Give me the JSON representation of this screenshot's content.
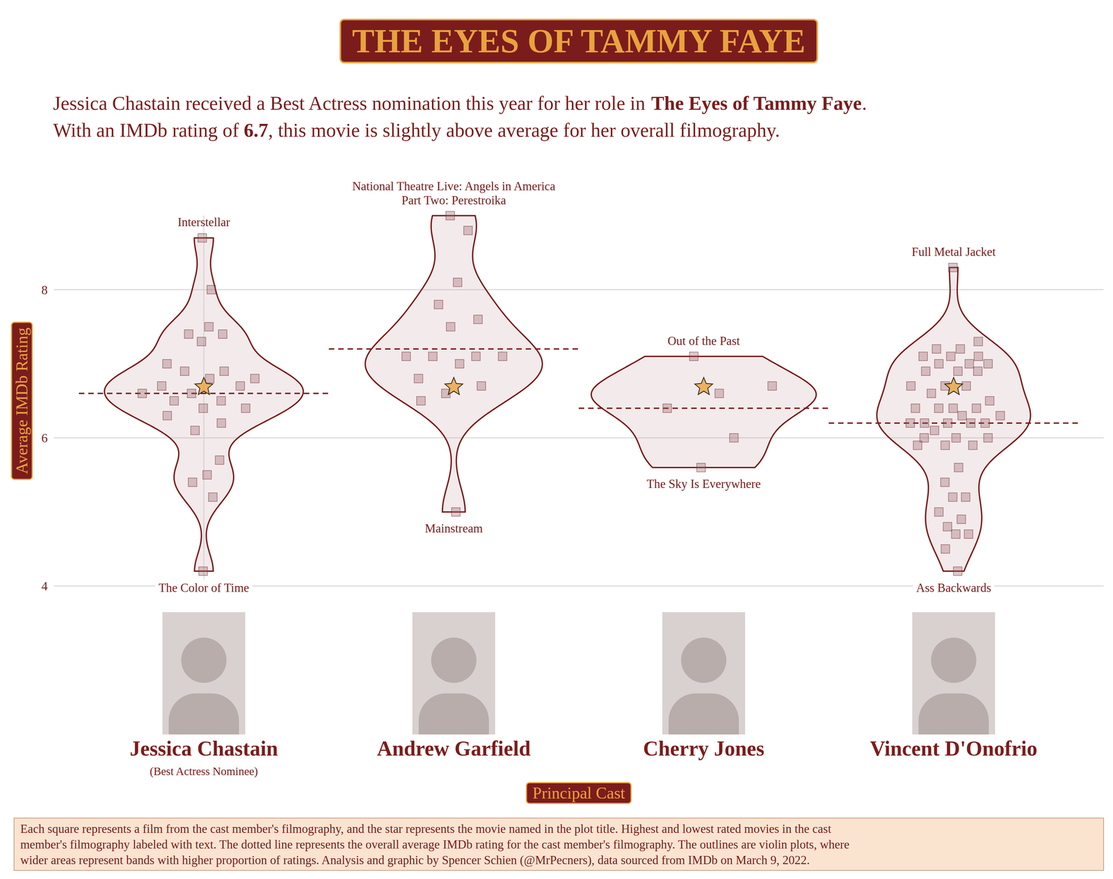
{
  "title": "THE EYES OF TAMMY FAYE",
  "subtitle": [
    [
      {
        "text": "Jessica Chastain received a Best Actress nomination this year for her role in ",
        "bold": false
      },
      {
        "text": "The Eyes of Tammy Faye",
        "bold": true
      },
      {
        "text": ".",
        "bold": false
      }
    ],
    [
      {
        "text": "With an IMDb rating of ",
        "bold": false
      },
      {
        "text": "6.7",
        "bold": true
      },
      {
        "text": ", this movie is slightly above average for her overall filmography.",
        "bold": false
      }
    ]
  ],
  "chart_data": {
    "type": "violin",
    "y_label": "Average IMDb Rating",
    "x_label": "Principal Cast",
    "ylim": [
      4,
      9
    ],
    "yticks": [
      4,
      6,
      8
    ],
    "grid": true,
    "series": [
      {
        "name": "Jessica Chastain",
        "note": "(Best Actress Nominee)",
        "values": [
          8.7,
          8.0,
          7.5,
          7.4,
          7.4,
          7.3,
          7.0,
          6.9,
          6.9,
          6.8,
          6.8,
          6.7,
          6.7,
          6.6,
          6.6,
          6.5,
          6.5,
          6.4,
          6.4,
          6.3,
          6.2,
          6.1,
          5.7,
          5.5,
          5.4,
          5.2,
          4.2
        ],
        "featured": 6.7,
        "average": 6.6,
        "top_label": [
          "Interstellar"
        ],
        "bottom_label": [
          "The Color of Time"
        ]
      },
      {
        "name": "Andrew Garfield",
        "values": [
          9.0,
          8.8,
          8.1,
          7.8,
          7.6,
          7.5,
          7.1,
          7.1,
          7.1,
          7.1,
          7.0,
          6.8,
          6.7,
          6.6,
          6.5,
          5.0
        ],
        "featured": 6.7,
        "average": 7.2,
        "top_label": [
          "National Theatre Live: Angels in America",
          "Part Two: Perestroika"
        ],
        "bottom_label": [
          "Mainstream"
        ]
      },
      {
        "name": "Cherry Jones",
        "values": [
          7.1,
          6.7,
          6.6,
          6.4,
          6.0,
          5.6
        ],
        "featured": 6.7,
        "average": 6.4,
        "top_label": [
          "Out of the Past"
        ],
        "bottom_label": [
          "The Sky Is Everywhere"
        ]
      },
      {
        "name": "Vincent D'Onofrio",
        "values": [
          8.3,
          7.3,
          7.2,
          7.2,
          7.1,
          7.1,
          7.1,
          7.0,
          7.0,
          7.0,
          6.9,
          6.9,
          6.9,
          6.7,
          6.7,
          6.7,
          6.6,
          6.5,
          6.4,
          6.4,
          6.4,
          6.4,
          6.3,
          6.3,
          6.2,
          6.2,
          6.2,
          6.2,
          6.2,
          6.1,
          6.0,
          6.0,
          6.0,
          5.9,
          5.9,
          5.9,
          5.6,
          5.4,
          5.2,
          5.2,
          5.0,
          4.9,
          4.8,
          4.7,
          4.7,
          4.5,
          4.2
        ],
        "featured": 6.7,
        "average": 6.2,
        "top_label": [
          "Full Metal Jacket"
        ],
        "bottom_label": [
          "Ass Backwards"
        ]
      }
    ]
  },
  "footnote": [
    "Each square represents a film from the cast member's filmography, and the star represents the movie named in the plot title. Highest and lowest rated movies in the cast",
    "member's filmography labeled with text. The dotted line represents the overall average IMDb rating for the cast member's filmography. The outlines are violin plots, where",
    "wider areas represent bands with higher proportion of ratings. Analysis and graphic by Spencer Schien (@MrPecners), data sourced from IMDb on March 9, 2022."
  ]
}
